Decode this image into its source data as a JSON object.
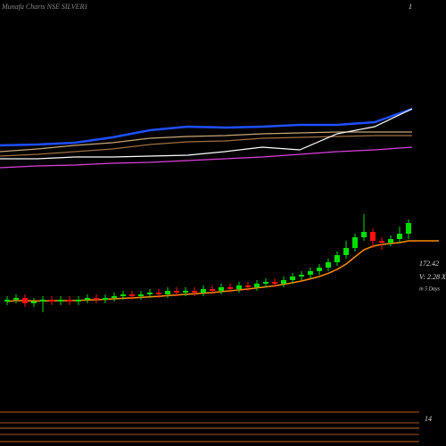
{
  "chart_data": [
    {
      "type": "line",
      "x": [
        0,
        1,
        2,
        3,
        4,
        5,
        6,
        7,
        8,
        9,
        10,
        11
      ],
      "xlim": [
        0,
        11
      ],
      "ylim": [
        0,
        100
      ],
      "series": [
        {
          "name": "Blue",
          "color": "#1f4fff",
          "values": [
            37,
            38,
            40,
            46,
            54,
            58,
            57,
            58,
            60,
            60,
            63,
            78
          ]
        },
        {
          "name": "Tan",
          "color": "#c8a878",
          "values": [
            30,
            33,
            37,
            40,
            45,
            47,
            48,
            50,
            51,
            52,
            52,
            52
          ]
        },
        {
          "name": "Brown",
          "color": "#a07040",
          "values": [
            25,
            27,
            30,
            33,
            38,
            41,
            42,
            45,
            46,
            47,
            48,
            48
          ]
        },
        {
          "name": "White",
          "color": "#ffffff",
          "values": [
            22,
            22,
            24,
            24,
            25,
            26,
            30,
            35,
            32,
            50,
            58,
            78
          ]
        },
        {
          "name": "Pink",
          "color": "#e040e0",
          "values": [
            12,
            14,
            15,
            17,
            18,
            20,
            22,
            24,
            27,
            30,
            32,
            35
          ]
        }
      ]
    },
    {
      "type": "candlestick",
      "title": "Munafa Charts NSE SILVER1",
      "corner_label": "1",
      "price_label": "172.42",
      "volume_label": "V: 2.28 X",
      "period_label": "in 5 Days",
      "bottom_label": "14",
      "up_color": "#00e000",
      "down_color": "#ff1010",
      "ma_color": "#ff8c00",
      "xlim": [
        0,
        45
      ],
      "ylim": [
        80,
        200
      ],
      "open": [
        146,
        147,
        148,
        145,
        146,
        147,
        146,
        147,
        146,
        147,
        148,
        147,
        148,
        149,
        150,
        149,
        150,
        151,
        150,
        152,
        151,
        152,
        151,
        153,
        152,
        154,
        153,
        155,
        154,
        156,
        157,
        156,
        158,
        160,
        161,
        163,
        165,
        168,
        172,
        176,
        182,
        185,
        180,
        179,
        181,
        184
      ],
      "high": [
        149,
        150,
        150,
        148,
        149,
        149,
        149,
        149,
        149,
        150,
        150,
        150,
        151,
        152,
        152,
        152,
        153,
        153,
        154,
        154,
        154,
        154,
        155,
        155,
        156,
        156,
        157,
        157,
        158,
        159,
        159,
        160,
        162,
        163,
        165,
        167,
        170,
        174,
        180,
        184,
        195,
        187,
        182,
        183,
        188,
        192
      ],
      "low": [
        144,
        145,
        143,
        143,
        140,
        144,
        144,
        144,
        144,
        145,
        145,
        145,
        146,
        147,
        147,
        147,
        148,
        148,
        148,
        149,
        149,
        149,
        149,
        150,
        150,
        151,
        151,
        152,
        152,
        154,
        154,
        154,
        156,
        158,
        159,
        161,
        163,
        166,
        170,
        174,
        180,
        176,
        175,
        177,
        179,
        181
      ],
      "close": [
        147,
        148,
        145,
        146,
        147,
        146,
        147,
        146,
        147,
        148,
        147,
        148,
        149,
        150,
        149,
        150,
        151,
        150,
        152,
        151,
        152,
        151,
        153,
        152,
        154,
        153,
        155,
        154,
        156,
        157,
        156,
        158,
        160,
        161,
        163,
        165,
        168,
        172,
        176,
        182,
        185,
        180,
        179,
        181,
        184,
        190
      ],
      "ma": [
        146,
        146.5,
        146.5,
        146.3,
        146.3,
        146.4,
        146.5,
        146.5,
        146.6,
        146.8,
        147,
        147.2,
        147.5,
        147.8,
        148,
        148.3,
        148.6,
        148.9,
        149.3,
        149.6,
        150,
        150.3,
        150.7,
        151,
        151.5,
        152,
        152.5,
        153,
        153.6,
        154.2,
        154.8,
        155.6,
        156.5,
        157.5,
        158.7,
        160,
        161.8,
        164,
        167,
        171,
        175,
        177,
        178,
        178.5,
        179,
        180
      ]
    }
  ]
}
